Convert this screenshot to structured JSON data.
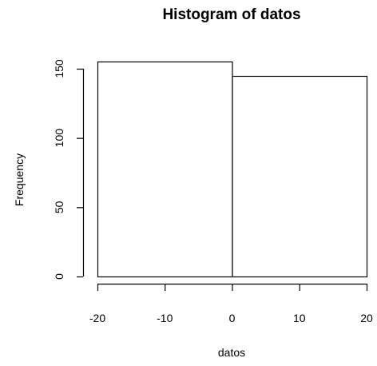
{
  "chart_data": {
    "type": "bar",
    "title": "Histogram of datos",
    "xlabel": "datos",
    "ylabel": "Frequency",
    "bins": [
      {
        "start": -20,
        "end": 0,
        "value": 155
      },
      {
        "start": 0,
        "end": 20,
        "value": 145
      }
    ],
    "xlim": [
      -20,
      20
    ],
    "ylim": [
      0,
      155
    ],
    "xticks": [
      -20,
      -10,
      0,
      10,
      20
    ],
    "yticks": [
      0,
      50,
      100,
      150
    ],
    "grid": false,
    "bar_fill": "#ffffff",
    "bar_stroke": "#000000"
  }
}
